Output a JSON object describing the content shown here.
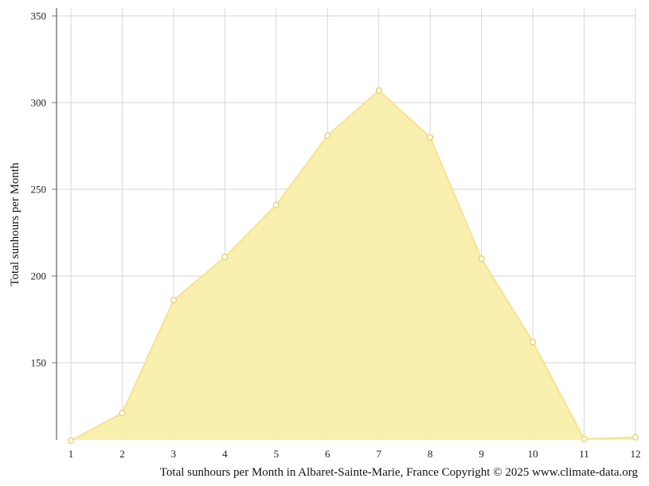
{
  "chart_data": {
    "type": "area",
    "title": "",
    "xlabel": "Total sunhours per Month in Albaret-Sainte-Marie, France Copyright © 2025 www.climate-data.org",
    "ylabel": "Total sunhours per Month",
    "x": [
      1,
      2,
      3,
      4,
      5,
      6,
      7,
      8,
      9,
      10,
      11,
      12
    ],
    "series": [
      {
        "values": [
          105,
          121,
          186,
          211,
          241,
          281,
          307,
          280,
          210,
          162,
          106,
          107
        ]
      }
    ],
    "xlim": [
      1,
      12
    ],
    "ylim": [
      105,
      354
    ],
    "yticks": [
      150,
      200,
      250,
      300,
      350
    ],
    "grid": true,
    "colors": {
      "fill": "#f9eeab",
      "line": "#f6e38e",
      "marker_fill": "#ffffff",
      "marker_stroke": "#e8cd5a"
    }
  }
}
